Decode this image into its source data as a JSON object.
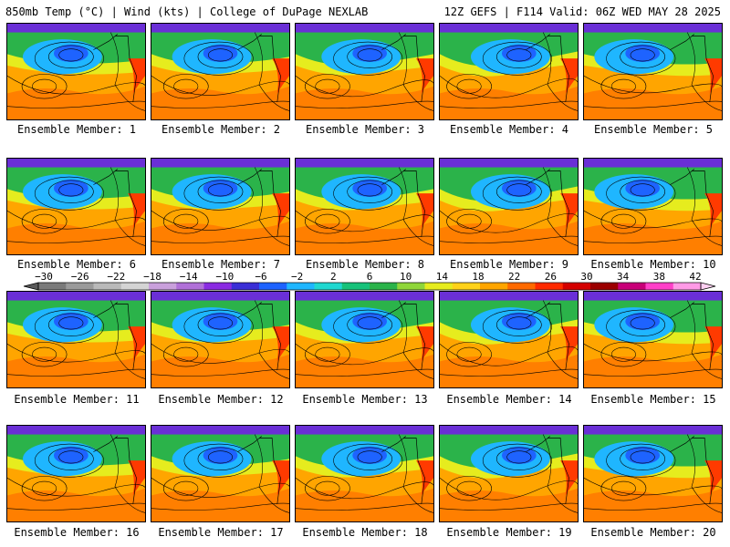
{
  "header": {
    "left_title": "850mb Temp (°C) | Wind (kts) | College of DuPage NEXLAB",
    "right_title": "12Z GEFS | F114 Valid: 06Z WED MAY 28 2025"
  },
  "panels": [
    {
      "label": "Ensemble Member: 1"
    },
    {
      "label": "Ensemble Member: 2"
    },
    {
      "label": "Ensemble Member: 3"
    },
    {
      "label": "Ensemble Member: 4"
    },
    {
      "label": "Ensemble Member: 5"
    },
    {
      "label": "Ensemble Member: 6"
    },
    {
      "label": "Ensemble Member: 7"
    },
    {
      "label": "Ensemble Member: 8"
    },
    {
      "label": "Ensemble Member: 9"
    },
    {
      "label": "Ensemble Member: 10"
    },
    {
      "label": "Ensemble Member: 11"
    },
    {
      "label": "Ensemble Member: 12"
    },
    {
      "label": "Ensemble Member: 13"
    },
    {
      "label": "Ensemble Member: 14"
    },
    {
      "label": "Ensemble Member: 15"
    },
    {
      "label": "Ensemble Member: 16"
    },
    {
      "label": "Ensemble Member: 17"
    },
    {
      "label": "Ensemble Member: 18"
    },
    {
      "label": "Ensemble Member: 19"
    },
    {
      "label": "Ensemble Member: 20"
    }
  ],
  "colorbar": {
    "ticks": [
      "−30",
      "−26",
      "−22",
      "−18",
      "−14",
      "−10",
      "−6",
      "−2",
      "2",
      "6",
      "10",
      "14",
      "18",
      "22",
      "26",
      "30",
      "34",
      "38",
      "42"
    ],
    "colors": [
      "#7a7a7a",
      "#9a9a9a",
      "#b9b9b9",
      "#d4d4d4",
      "#c9a0dc",
      "#b070d8",
      "#8a2be2",
      "#3b2fd6",
      "#1e63ff",
      "#1fb6ff",
      "#20d8d0",
      "#17c27a",
      "#2bb34a",
      "#8fd63a",
      "#e6ec1e",
      "#ffd21a",
      "#ffa500",
      "#ff6a00",
      "#ff2a00",
      "#d40000",
      "#9b0000",
      "#c80078",
      "#ff40c8",
      "#ff9ae6"
    ]
  },
  "map_colors": {
    "cold": "#6a2fd6",
    "cool": "#1fb6ff",
    "mild": "#2bb34a",
    "warm": "#e6ec1e",
    "hot": "#ffa500",
    "very_hot": "#ff3a00"
  }
}
